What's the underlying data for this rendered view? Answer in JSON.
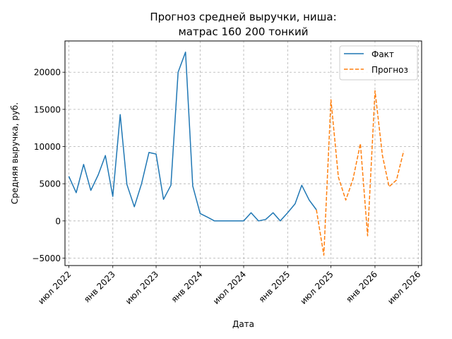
{
  "chart_data": {
    "type": "line",
    "title_line1": "Прогноз средней выручки, ниша:",
    "title_line2": "матрас 160 200 тонкий",
    "xlabel": "Дата",
    "ylabel": "Средняя выручка, руб.",
    "ylim": [
      -6000,
      24200
    ],
    "xlim": [
      "2022-06-15",
      "2026-07-15"
    ],
    "grid": true,
    "legend_position": "top-right",
    "y_ticks": [
      -5000,
      0,
      5000,
      10000,
      15000,
      20000
    ],
    "y_tick_labels": [
      "−5000",
      "0",
      "5000",
      "10000",
      "15000",
      "20000"
    ],
    "x_ticks": [
      {
        "date": "2022-07-01",
        "label": "июл 2022"
      },
      {
        "date": "2023-01-01",
        "label": "янв 2023"
      },
      {
        "date": "2023-07-01",
        "label": "июл 2023"
      },
      {
        "date": "2024-01-01",
        "label": "янв 2024"
      },
      {
        "date": "2024-07-01",
        "label": "июл 2024"
      },
      {
        "date": "2025-01-01",
        "label": "янв 2025"
      },
      {
        "date": "2025-07-01",
        "label": "июл 2025"
      },
      {
        "date": "2026-01-01",
        "label": "янв 2026"
      },
      {
        "date": "2026-07-01",
        "label": "июл 2026"
      }
    ],
    "series": [
      {
        "name": "Факт",
        "color": "#1f77b4",
        "style": "solid",
        "points": [
          [
            "2022-07-01",
            6000
          ],
          [
            "2022-08-01",
            3800
          ],
          [
            "2022-09-01",
            7600
          ],
          [
            "2022-10-01",
            4100
          ],
          [
            "2022-11-01",
            6200
          ],
          [
            "2022-12-01",
            8800
          ],
          [
            "2023-01-01",
            3300
          ],
          [
            "2023-02-01",
            14300
          ],
          [
            "2023-03-01",
            4900
          ],
          [
            "2023-04-01",
            1900
          ],
          [
            "2023-05-01",
            5000
          ],
          [
            "2023-06-01",
            9200
          ],
          [
            "2023-07-01",
            9000
          ],
          [
            "2023-08-01",
            2900
          ],
          [
            "2023-09-01",
            4800
          ],
          [
            "2023-10-01",
            20000
          ],
          [
            "2023-11-01",
            22700
          ],
          [
            "2023-12-01",
            4700
          ],
          [
            "2024-01-01",
            1000
          ],
          [
            "2024-02-01",
            500
          ],
          [
            "2024-03-01",
            0
          ],
          [
            "2024-04-01",
            0
          ],
          [
            "2024-05-01",
            0
          ],
          [
            "2024-06-01",
            0
          ],
          [
            "2024-07-01",
            0
          ],
          [
            "2024-08-01",
            1100
          ],
          [
            "2024-09-01",
            0
          ],
          [
            "2024-10-01",
            200
          ],
          [
            "2024-11-01",
            1100
          ],
          [
            "2024-12-01",
            0
          ],
          [
            "2025-01-01",
            1100
          ],
          [
            "2025-02-01",
            2300
          ],
          [
            "2025-03-01",
            4800
          ],
          [
            "2025-04-01",
            2800
          ],
          [
            "2025-05-01",
            1500
          ]
        ]
      },
      {
        "name": "Прогноз",
        "color": "#ff7f0e",
        "style": "dashed",
        "points": [
          [
            "2025-05-01",
            1500
          ],
          [
            "2025-06-01",
            -4600
          ],
          [
            "2025-07-01",
            16300
          ],
          [
            "2025-08-01",
            5900
          ],
          [
            "2025-09-01",
            2800
          ],
          [
            "2025-10-01",
            5600
          ],
          [
            "2025-11-01",
            10400
          ],
          [
            "2025-12-01",
            -2000
          ],
          [
            "2026-01-01",
            17500
          ],
          [
            "2026-02-01",
            8800
          ],
          [
            "2026-03-01",
            4600
          ],
          [
            "2026-04-01",
            5500
          ],
          [
            "2026-05-01",
            9400
          ]
        ]
      }
    ]
  }
}
